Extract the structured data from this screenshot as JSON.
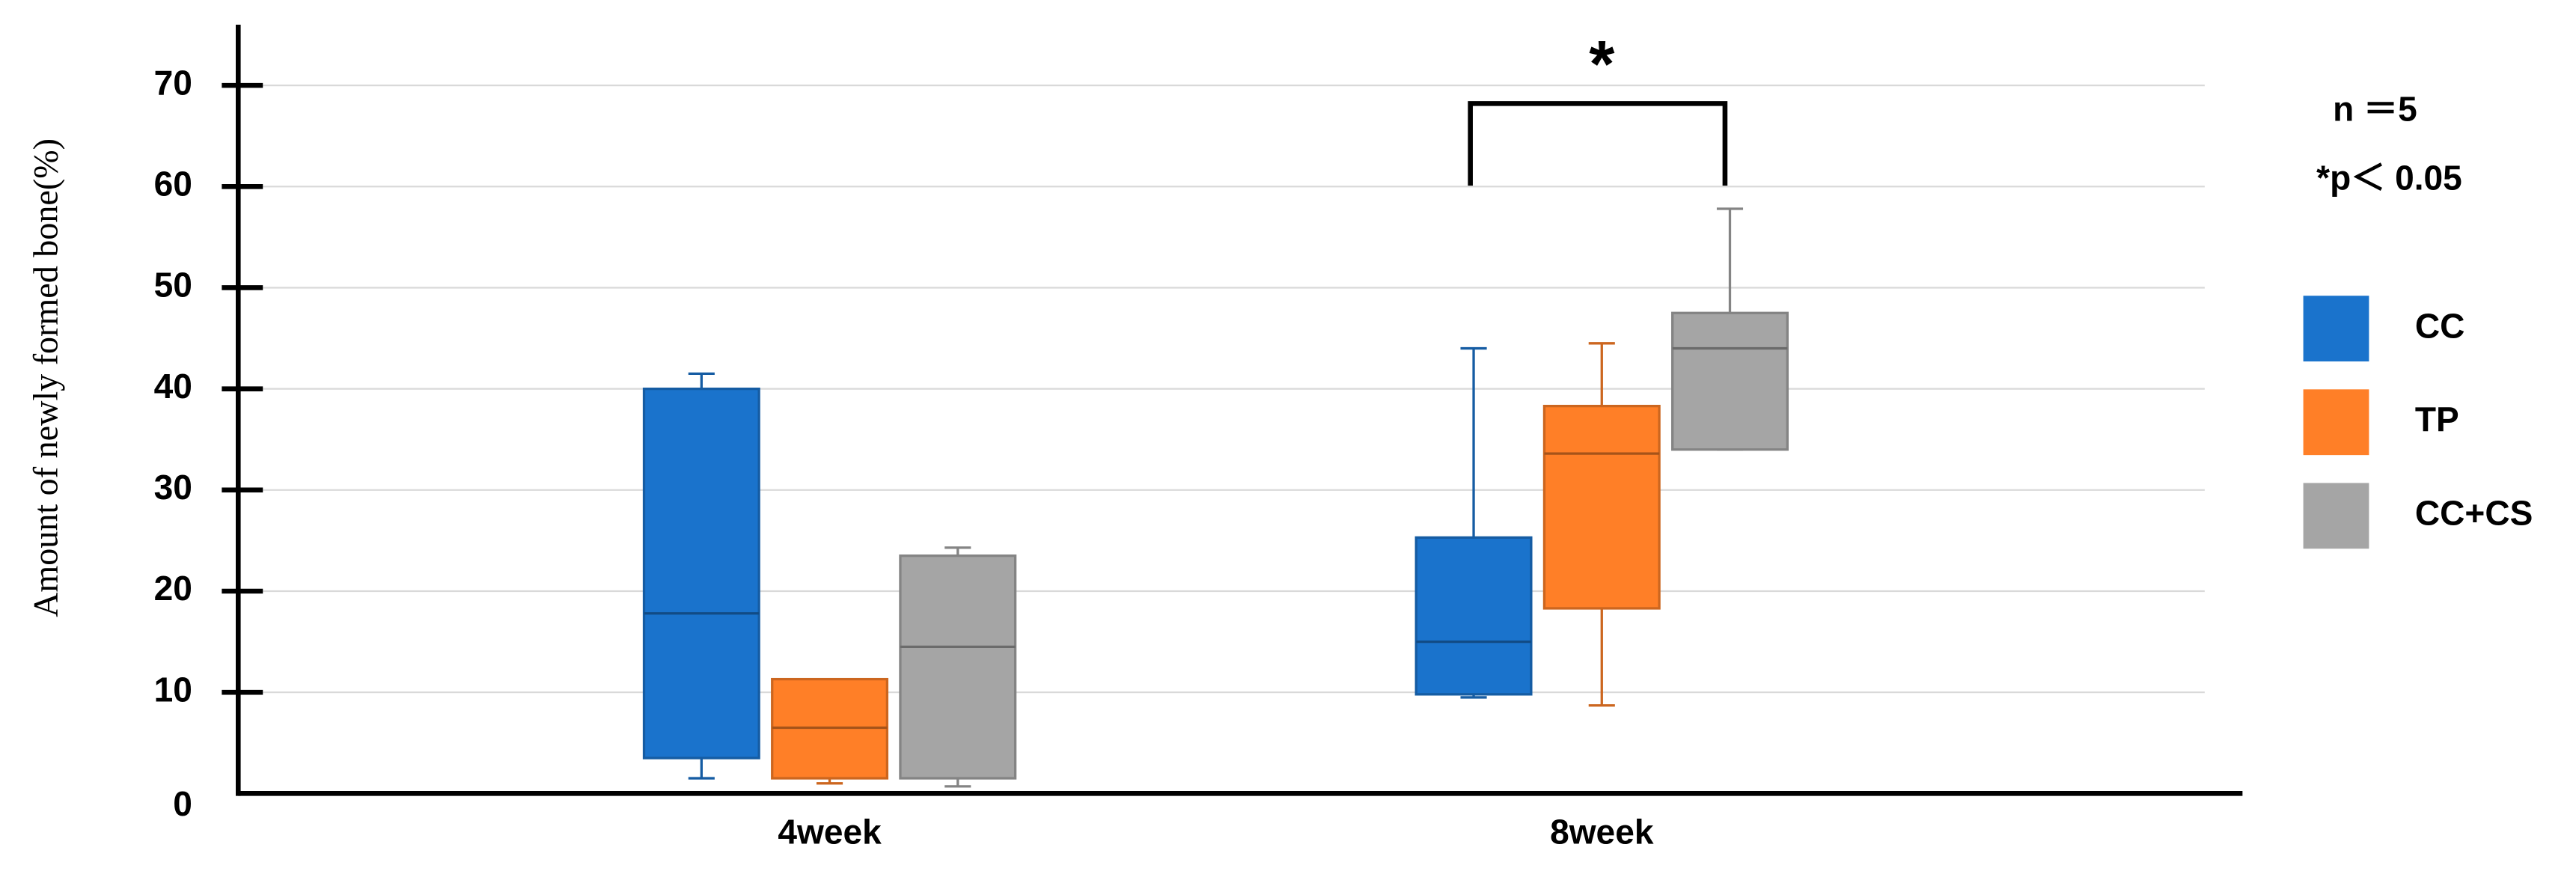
{
  "chart_data": {
    "type": "box",
    "y_label": "Amount of newly formed bone(%)",
    "categories": [
      "4week",
      "8week"
    ],
    "series": [
      {
        "name": "CC",
        "color": "#1a73cc",
        "min": [
          1.5,
          9.5
        ],
        "q1": [
          3.5,
          9.8
        ],
        "median": [
          17.8,
          15
        ],
        "q3": [
          40,
          25.3
        ],
        "max": [
          41.5,
          44
        ]
      },
      {
        "name": "TP",
        "color": "#ff7f27",
        "min": [
          1,
          8.7
        ],
        "q1": [
          1.5,
          18.3
        ],
        "median": [
          6.5,
          33.6
        ],
        "q3": [
          11.3,
          38.3
        ],
        "max": [
          11.3,
          44.5
        ]
      },
      {
        "name": "CC+CS",
        "color": "#a5a5a5",
        "min": [
          0.7,
          34
        ],
        "q1": [
          1.5,
          34
        ],
        "median": [
          14.5,
          44
        ],
        "q3": [
          23.5,
          47.5
        ],
        "max": [
          24.3,
          57.8
        ]
      }
    ],
    "ylim": [
      0,
      76
    ],
    "yticks": [
      0,
      10,
      20,
      30,
      40,
      50,
      60,
      70
    ],
    "grid": true,
    "annotations": [
      "*",
      "n ＝5",
      "*p＜ 0.05"
    ]
  }
}
